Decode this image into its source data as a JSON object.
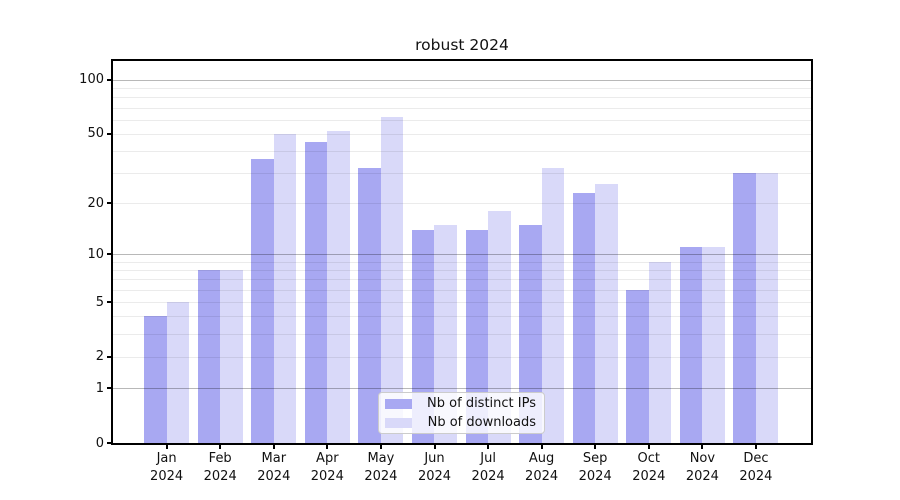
{
  "chart_data": {
    "type": "bar",
    "title": "robust 2024",
    "categories": [
      "Jan 2024",
      "Feb 2024",
      "Mar 2024",
      "Apr 2024",
      "May 2024",
      "Jun 2024",
      "Jul 2024",
      "Aug 2024",
      "Sep 2024",
      "Oct 2024",
      "Nov 2024",
      "Dec 2024"
    ],
    "series": [
      {
        "name": "Nb of distinct IPs",
        "color": "#a8a8f2",
        "values": [
          4,
          8,
          36,
          45,
          32,
          14,
          14,
          15,
          23,
          6,
          11,
          30
        ]
      },
      {
        "name": "Nb of downloads",
        "color": "#d9d9f9",
        "values": [
          5,
          8,
          50,
          52,
          62,
          15,
          18,
          32,
          26,
          9,
          11,
          30
        ]
      }
    ],
    "yscale": "log1p",
    "ylim": [
      0,
      126
    ],
    "yticks": [
      0,
      1,
      2,
      5,
      10,
      20,
      50,
      100
    ],
    "grid_values": [
      1,
      2,
      3,
      4,
      5,
      6,
      7,
      8,
      9,
      10,
      20,
      30,
      40,
      50,
      60,
      70,
      80,
      90,
      100
    ],
    "grid_emphasis_values": [
      1,
      10,
      100
    ],
    "legend_position": "lower center",
    "xlabel": "",
    "ylabel": ""
  }
}
